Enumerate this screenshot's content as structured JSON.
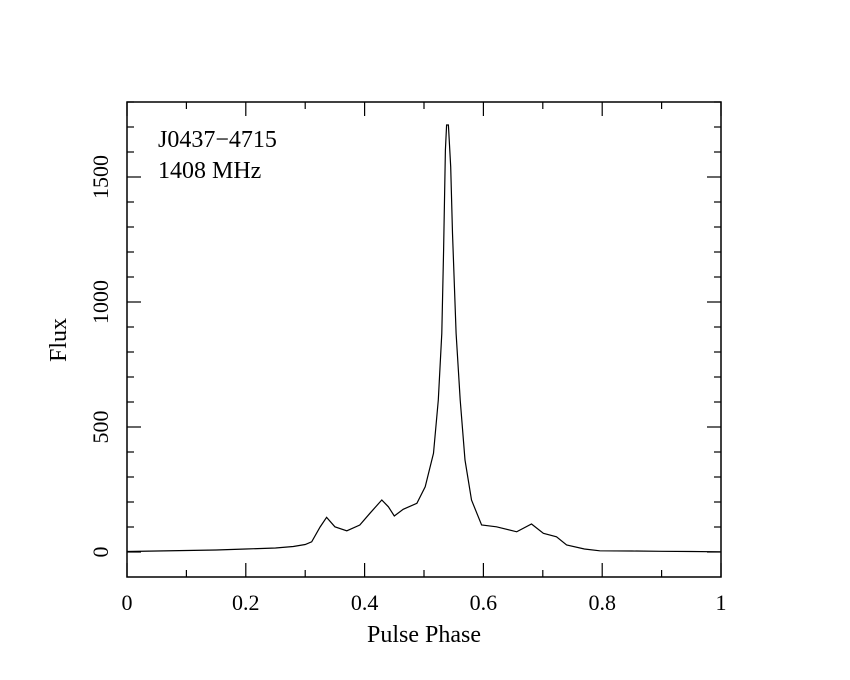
{
  "chart_data": {
    "type": "line",
    "title": "",
    "annotations": [
      "J0437−4715",
      "1408 MHz"
    ],
    "xlabel": "Pulse Phase",
    "ylabel": "Flux",
    "xlim": [
      0,
      1
    ],
    "ylim": [
      -100,
      1800
    ],
    "xticks": [
      0,
      0.2,
      0.4,
      0.6,
      0.8,
      1
    ],
    "xtick_labels": [
      "0",
      "0.2",
      "0.4",
      "0.6",
      "0.8",
      "1"
    ],
    "yticks": [
      0,
      500,
      1000,
      1500
    ],
    "ytick_labels": [
      "0",
      "500",
      "1000",
      "1500"
    ],
    "x_minor_step": 0.1,
    "y_minor_step": 100,
    "grid": false,
    "series": [
      {
        "name": "profile",
        "color": "#000000",
        "x": [
          0,
          0.05,
          0.1,
          0.15,
          0.2,
          0.25,
          0.28,
          0.3,
          0.311,
          0.325,
          0.336,
          0.35,
          0.37,
          0.392,
          0.409,
          0.429,
          0.44,
          0.45,
          0.465,
          0.488,
          0.502,
          0.516,
          0.524,
          0.53,
          0.533,
          0.536,
          0.538,
          0.541,
          0.545,
          0.548,
          0.554,
          0.561,
          0.569,
          0.58,
          0.597,
          0.622,
          0.656,
          0.681,
          0.701,
          0.723,
          0.74,
          0.77,
          0.796,
          0.85,
          0.9,
          0.95,
          1
        ],
        "y": [
          2,
          4,
          6,
          8,
          12,
          16,
          22,
          30,
          41,
          100,
          139,
          101,
          85,
          108,
          155,
          208,
          181,
          144,
          171,
          195,
          261,
          395,
          608,
          875,
          1208,
          1608,
          1708,
          1708,
          1541,
          1275,
          875,
          608,
          368,
          208,
          108,
          101,
          81,
          112,
          75,
          61,
          28,
          12,
          5,
          4,
          3,
          2,
          1
        ]
      }
    ]
  }
}
